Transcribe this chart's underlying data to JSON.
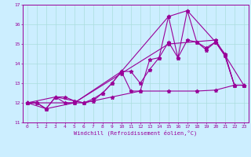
{
  "xlabel": "Windchill (Refroidissement éolien,°C)",
  "bg_color": "#cceeff",
  "line_color": "#990099",
  "grid_color": "#aadddd",
  "xlim": [
    -0.5,
    23.5
  ],
  "ylim": [
    11,
    17
  ],
  "xticks": [
    0,
    1,
    2,
    3,
    4,
    5,
    6,
    7,
    8,
    9,
    10,
    11,
    12,
    13,
    14,
    15,
    16,
    17,
    18,
    19,
    20,
    21,
    22,
    23
  ],
  "yticks": [
    11,
    12,
    13,
    14,
    15,
    16,
    17
  ],
  "series1": [
    [
      0,
      12.0
    ],
    [
      1,
      12.0
    ],
    [
      2,
      11.7
    ],
    [
      3,
      12.3
    ],
    [
      4,
      12.3
    ],
    [
      5,
      12.1
    ],
    [
      6,
      12.0
    ],
    [
      7,
      12.1
    ],
    [
      8,
      12.5
    ],
    [
      9,
      13.0
    ],
    [
      10,
      13.6
    ],
    [
      11,
      12.6
    ],
    [
      12,
      12.6
    ],
    [
      13,
      14.2
    ],
    [
      14,
      14.3
    ],
    [
      15,
      16.4
    ],
    [
      16,
      14.3
    ],
    [
      17,
      16.7
    ],
    [
      18,
      15.1
    ],
    [
      19,
      14.7
    ],
    [
      20,
      15.1
    ],
    [
      21,
      14.4
    ],
    [
      22,
      12.9
    ],
    [
      23,
      12.9
    ]
  ],
  "series2": [
    [
      0,
      12.0
    ],
    [
      1,
      12.0
    ],
    [
      2,
      11.7
    ],
    [
      3,
      12.3
    ],
    [
      4,
      12.0
    ],
    [
      5,
      12.0
    ],
    [
      6,
      12.0
    ],
    [
      7,
      12.2
    ],
    [
      8,
      12.5
    ],
    [
      9,
      13.0
    ],
    [
      10,
      13.6
    ],
    [
      11,
      13.6
    ],
    [
      12,
      13.0
    ],
    [
      13,
      13.7
    ],
    [
      14,
      14.3
    ],
    [
      15,
      15.1
    ],
    [
      16,
      14.3
    ],
    [
      17,
      15.2
    ],
    [
      18,
      15.1
    ],
    [
      19,
      14.8
    ],
    [
      20,
      15.1
    ],
    [
      21,
      14.5
    ],
    [
      22,
      12.9
    ],
    [
      23,
      12.9
    ]
  ],
  "series3": [
    [
      0,
      12.0
    ],
    [
      3,
      12.3
    ],
    [
      6,
      12.0
    ],
    [
      9,
      12.3
    ],
    [
      12,
      12.6
    ],
    [
      15,
      12.6
    ],
    [
      18,
      12.6
    ],
    [
      20,
      12.65
    ],
    [
      22,
      12.9
    ],
    [
      23,
      12.9
    ]
  ],
  "series4": [
    [
      0,
      12.0
    ],
    [
      5,
      12.0
    ],
    [
      10,
      13.5
    ],
    [
      15,
      15.0
    ],
    [
      20,
      15.2
    ],
    [
      23,
      12.9
    ]
  ],
  "series5": [
    [
      0,
      12.0
    ],
    [
      2,
      11.7
    ],
    [
      5,
      12.0
    ],
    [
      10,
      13.6
    ],
    [
      15,
      16.4
    ],
    [
      17,
      16.7
    ],
    [
      20,
      15.1
    ],
    [
      21,
      14.4
    ],
    [
      22,
      12.9
    ],
    [
      23,
      12.9
    ]
  ]
}
